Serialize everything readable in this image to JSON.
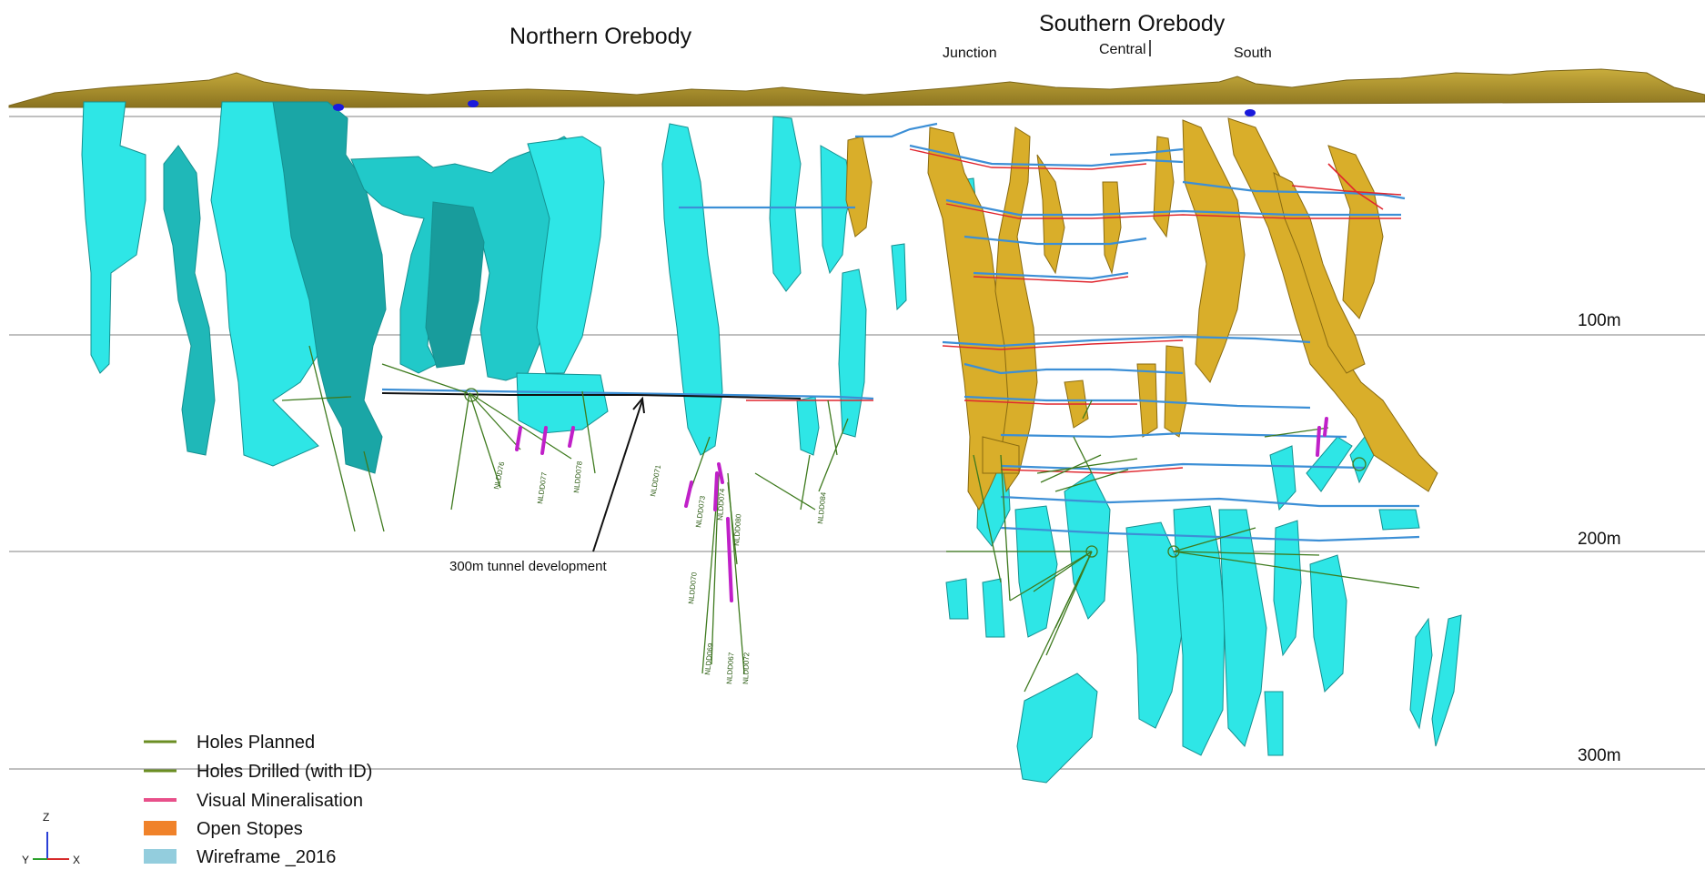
{
  "titles": {
    "northern": "Northern Orebody",
    "southern": "Southern Orebody",
    "zones": [
      "Junction",
      "Central",
      "South"
    ]
  },
  "depths": [
    "100m",
    "200m",
    "300m"
  ],
  "annotation": "300m tunnel development",
  "hole_ids": [
    "NLDD76",
    "NLDD077",
    "NLDD078",
    "NLDD071",
    "NLDD073",
    "NLDD074",
    "NLDD070",
    "NLDD069",
    "NLDD067",
    "NLDD072",
    "NLDD084",
    "NLDD080"
  ],
  "legend": [
    {
      "label": "Holes Planned",
      "color": "#6b8e23",
      "kind": "line"
    },
    {
      "label": "Holes Drilled (with ID)",
      "color": "#6b8e23",
      "kind": "line"
    },
    {
      "label": "Visual Mineralisation",
      "color": "#e8508a",
      "kind": "line"
    },
    {
      "label": "Open Stopes",
      "color": "#f0822a",
      "kind": "box"
    },
    {
      "label": "Wireframe _2016",
      "color": "#93cddd",
      "kind": "box"
    }
  ],
  "axes": {
    "z": "Z",
    "y": "Y",
    "x": "X"
  },
  "colors": {
    "terrain": "#a98f2e",
    "wireframe": "#2ee6e6",
    "wireframe_dark": "#189c9c",
    "stopes": "#d9ae2a",
    "development_blue": "#3c8fd6",
    "development_red": "#e0262e",
    "holes": "#3e7a1e",
    "mineralisation": "#c020c8"
  }
}
